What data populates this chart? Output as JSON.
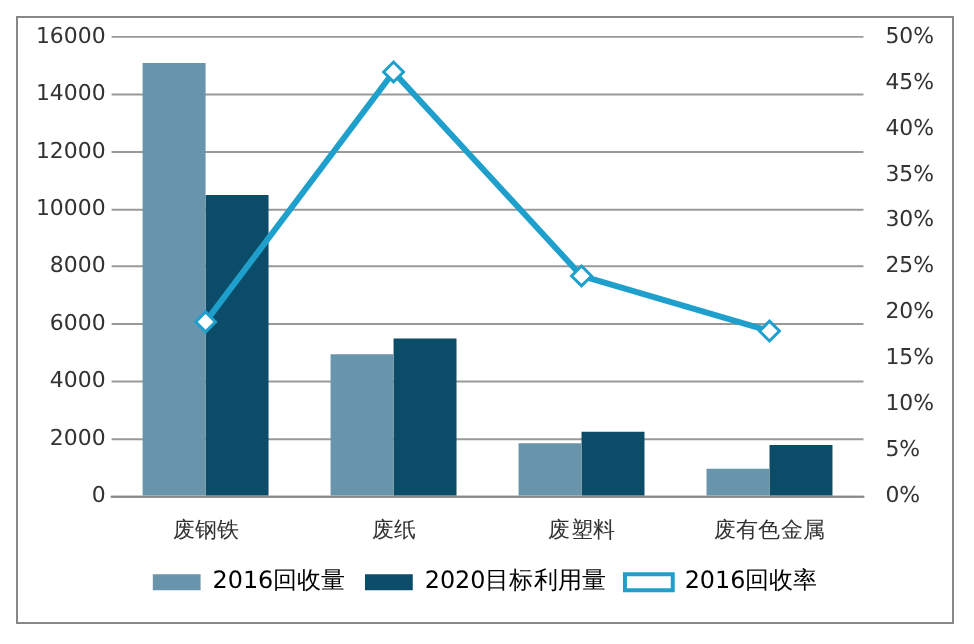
{
  "chart_data": {
    "type": "bar",
    "categories": [
      "废钢铁",
      "废纸",
      "废塑料",
      "废有色金属"
    ],
    "series": [
      {
        "name": "2016回收量",
        "color": "#6895ab",
        "values": [
          15100,
          4950,
          1850,
          960
        ]
      },
      {
        "name": "2020目标利用量",
        "color": "#0b4d69",
        "values": [
          10500,
          5500,
          2250,
          1790
        ]
      },
      {
        "name": "2016回收率",
        "type": "line",
        "axis": "y2",
        "color": "#1fa0cc",
        "marker": "diamond",
        "values": [
          19,
          46.2,
          24,
          18
        ]
      }
    ],
    "ylim": [
      0,
      16000
    ],
    "yticks": [
      0,
      2000,
      4000,
      6000,
      8000,
      10000,
      12000,
      14000,
      16000
    ],
    "y2lim": [
      0,
      50
    ],
    "y2ticks": [
      {
        "value": 0,
        "label": "0%"
      },
      {
        "value": 5,
        "label": "5%"
      },
      {
        "value": 10,
        "label": "10%"
      },
      {
        "value": 15,
        "label": "15%"
      },
      {
        "value": 20,
        "label": "20%"
      },
      {
        "value": 25,
        "label": "25%"
      },
      {
        "value": 30,
        "label": "30%"
      },
      {
        "value": 35,
        "label": "35%"
      },
      {
        "value": 40,
        "label": "40%"
      },
      {
        "value": 45,
        "label": "45%"
      },
      {
        "value": 50,
        "label": "50%"
      }
    ],
    "grid": "y",
    "legend": "bottom"
  }
}
